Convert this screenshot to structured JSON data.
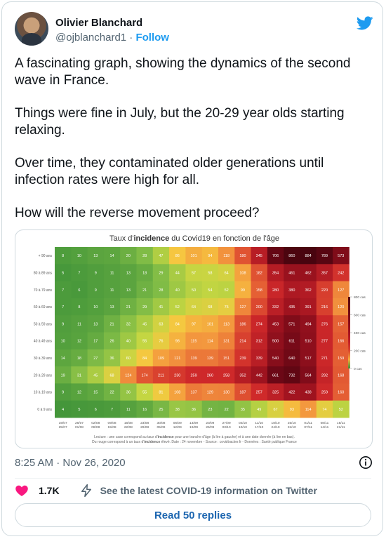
{
  "author": {
    "name": "Olivier Blanchard",
    "handle": "@ojblanchard1",
    "separator": " · ",
    "follow_label": "Follow"
  },
  "tweet": {
    "paragraphs": [
      "A fascinating graph, showing the dynamics of the second wave in France.",
      "Things were fine in July, but the 20-29 year olds starting relaxing.",
      "Over time, they contaminated older generations until infection rates were high for all.",
      "How will the reverse movement proceed?"
    ],
    "timestamp": "8:25 AM · Nov 26, 2020"
  },
  "actions": {
    "likes": "1.7K",
    "covid_link": "See the latest COVID-19 information on Twitter",
    "replies_label": "Read 50 replies"
  },
  "icons": {
    "bird": "twitter-bird-icon",
    "info": "info-icon",
    "heart": "heart-icon",
    "bolt": "lightning-icon"
  },
  "colors": {
    "twitter_blue": "#1d9bf0",
    "heart": "#f91880"
  },
  "chart_data": {
    "type": "heatmap",
    "title_parts": [
      "Taux d'",
      "incidence",
      " du Covid19 en fonction de l'âge"
    ],
    "age_groups": [
      "+ 90 ans",
      "80 à 89 ans",
      "70 à 79 ans",
      "60 à 69 ans",
      "50 à 59 ans",
      "40 à 49 ans",
      "30 à 39 ans",
      "20 à 29 ans",
      "10 à 19 ans",
      "0 à 9 ans"
    ],
    "weeks": [
      [
        "19/07",
        "25/07"
      ],
      [
        "26/07",
        "01/08"
      ],
      [
        "02/08",
        "08/08"
      ],
      [
        "09/08",
        "15/08"
      ],
      [
        "16/08",
        "22/08"
      ],
      [
        "23/08",
        "29/08"
      ],
      [
        "30/08",
        "05/09"
      ],
      [
        "06/09",
        "12/09"
      ],
      [
        "13/09",
        "19/09"
      ],
      [
        "20/09",
        "26/09"
      ],
      [
        "27/09",
        "03/10"
      ],
      [
        "04/10",
        "10/10"
      ],
      [
        "11/10",
        "17/10"
      ],
      [
        "18/10",
        "24/10"
      ],
      [
        "25/10",
        "31/10"
      ],
      [
        "01/11",
        "07/11"
      ],
      [
        "08/11",
        "14/11"
      ],
      [
        "15/11",
        "21/11"
      ]
    ],
    "values": [
      [
        8,
        10,
        13,
        14,
        20,
        28,
        47,
        86,
        101,
        94,
        118,
        180,
        345,
        706,
        860,
        884,
        789,
        573
      ],
      [
        5,
        7,
        9,
        11,
        13,
        18,
        29,
        44,
        57,
        58,
        64,
        108,
        182,
        354,
        461,
        462,
        357,
        242
      ],
      [
        7,
        6,
        9,
        11,
        13,
        21,
        28,
        40,
        50,
        54,
        52,
        99,
        158,
        280,
        380,
        362,
        220,
        127
      ],
      [
        7,
        8,
        10,
        13,
        21,
        29,
        41,
        52,
        64,
        68,
        75,
        127,
        200,
        332,
        435,
        391,
        216,
        120
      ],
      [
        9,
        11,
        13,
        21,
        32,
        45,
        63,
        84,
        97,
        101,
        113,
        186,
        274,
        453,
        571,
        494,
        276,
        157
      ],
      [
        10,
        12,
        17,
        26,
        40,
        55,
        76,
        98,
        115,
        114,
        131,
        214,
        312,
        500,
        611,
        510,
        277,
        166
      ],
      [
        14,
        18,
        27,
        36,
        60,
        84,
        109,
        121,
        139,
        139,
        151,
        239,
        339,
        540,
        640,
        517,
        271,
        159
      ],
      [
        19,
        31,
        45,
        68,
        124,
        174,
        211,
        230,
        259,
        260,
        258,
        352,
        442,
        661,
        732,
        564,
        292,
        168
      ],
      [
        9,
        12,
        15,
        22,
        36,
        55,
        81,
        108,
        137,
        129,
        130,
        187,
        257,
        325,
        422,
        438,
        259,
        160
      ],
      [
        4,
        5,
        6,
        7,
        11,
        16,
        25,
        38,
        36,
        23,
        22,
        35,
        49,
        67,
        93,
        114,
        74,
        52
      ]
    ],
    "legend_ticks": [
      "800 cas",
      "600 cas",
      "400 cas",
      "200 cas",
      "0 cas"
    ],
    "legend_values": [
      800,
      600,
      400,
      200,
      0
    ],
    "legend_max": 800,
    "caption_line1_parts": [
      "Lecture : une case correspond au taux d'",
      "incidence",
      " pour une tranche d'âge (à lire à gauche) et à une date donnée (à lire en bas)."
    ],
    "caption_line2_parts": [
      "Du rouge correspond à un taux d'",
      "incidence",
      " élevé.  Date : 24 novembre - Source : covidtracker.fr - Données : Santé publique France"
    ]
  }
}
